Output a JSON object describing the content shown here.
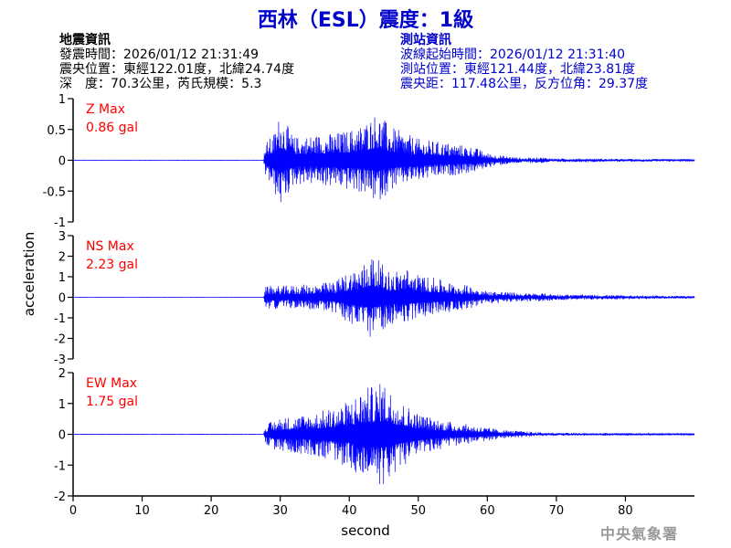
{
  "title": "西林（ESL）震度：1級",
  "event_info": {
    "heading": "地震資訊",
    "origin_time": "發震時間：2026/01/12 21:31:49",
    "epicenter": "震央位置：東經122.01度，北緯24.74度",
    "depth_magnitude": "深　度：70.3公里，芮氏規模：5.3"
  },
  "station_info": {
    "heading": "測站資訊",
    "wave_start": "波線起始時間：2026/01/12 21:31:40",
    "station_location": "測站位置：東經121.44度，北緯23.81度",
    "distance_azimuth": "震央距：117.48公里，反方位角：29.37度"
  },
  "footer": "中央氣象署",
  "colors": {
    "title": "#0000cc",
    "trace": "#0000ff",
    "max_label": "#ff0000",
    "axis": "#000000",
    "station_text": "#0000cc"
  },
  "chart_data": {
    "type": "line",
    "xlabel": "second",
    "ylabel": "acceleration",
    "xlim": [
      0,
      90
    ],
    "xticks": [
      0,
      10,
      20,
      30,
      40,
      50,
      60,
      70,
      80
    ],
    "grid": false,
    "panels": [
      {
        "name": "Z",
        "max_label": "Z Max",
        "max_value": "0.86 gal",
        "ylim": [
          -1,
          1
        ],
        "yticks": [
          -1,
          -0.5,
          0,
          0.5,
          1
        ],
        "envelope": {
          "time": [
            0,
            27.6,
            27.8,
            29,
            30,
            32,
            35,
            38,
            40,
            42,
            44,
            46,
            48,
            50,
            52,
            55,
            58,
            60,
            62,
            65,
            68,
            70,
            75,
            80,
            85,
            90
          ],
          "upper": [
            0.002,
            0.002,
            0.28,
            0.42,
            0.78,
            0.38,
            0.42,
            0.45,
            0.5,
            0.6,
            0.8,
            0.55,
            0.45,
            0.35,
            0.32,
            0.28,
            0.22,
            0.12,
            0.08,
            0.04,
            0.05,
            0.03,
            0.03,
            0.02,
            0.02,
            0.02
          ],
          "lower": [
            -0.002,
            -0.002,
            -0.25,
            -0.5,
            -0.78,
            -0.4,
            -0.4,
            -0.45,
            -0.5,
            -0.55,
            -0.7,
            -0.5,
            -0.4,
            -0.35,
            -0.3,
            -0.25,
            -0.2,
            -0.12,
            -0.08,
            -0.04,
            -0.05,
            -0.03,
            -0.03,
            -0.02,
            -0.02,
            -0.02
          ]
        }
      },
      {
        "name": "NS",
        "max_label": "NS Max",
        "max_value": "2.23 gal",
        "ylim": [
          -3,
          3
        ],
        "yticks": [
          -3,
          -2,
          -1,
          0,
          1,
          2,
          3
        ],
        "envelope": {
          "time": [
            0,
            27.6,
            27.8,
            29,
            30,
            32,
            35,
            38,
            40,
            42,
            43,
            44,
            46,
            48,
            50,
            53,
            55,
            58,
            60,
            62,
            65,
            68,
            70,
            75,
            80,
            85,
            90
          ],
          "upper": [
            0.005,
            0.005,
            0.5,
            0.6,
            0.55,
            0.6,
            0.65,
            0.8,
            1.3,
            1.6,
            2.2,
            1.9,
            1.2,
            1.5,
            1.1,
            0.9,
            0.7,
            0.55,
            0.3,
            0.3,
            0.2,
            0.2,
            0.15,
            0.12,
            0.1,
            0.08,
            0.06
          ],
          "lower": [
            -0.005,
            -0.005,
            -0.5,
            -0.6,
            -0.5,
            -0.55,
            -0.6,
            -0.8,
            -1.3,
            -1.8,
            -2.0,
            -1.8,
            -1.3,
            -1.3,
            -1.0,
            -0.8,
            -0.7,
            -0.5,
            -0.3,
            -0.3,
            -0.2,
            -0.2,
            -0.15,
            -0.12,
            -0.1,
            -0.08,
            -0.06
          ]
        }
      },
      {
        "name": "EW",
        "max_label": "EW Max",
        "max_value": "1.75 gal",
        "ylim": [
          -2,
          2
        ],
        "yticks": [
          -2,
          -1,
          0,
          1,
          2
        ],
        "envelope": {
          "time": [
            0,
            27.6,
            27.8,
            29,
            30,
            32,
            35,
            38,
            40,
            42,
            44,
            45,
            46,
            48,
            50,
            52,
            55,
            58,
            60,
            62,
            65,
            68,
            70,
            75,
            80,
            85,
            90
          ],
          "upper": [
            0.005,
            0.005,
            0.3,
            0.45,
            0.55,
            0.6,
            0.7,
            0.9,
            1.1,
            1.5,
            1.6,
            1.75,
            1.45,
            1.0,
            0.7,
            0.55,
            0.4,
            0.3,
            0.22,
            0.15,
            0.1,
            0.06,
            0.05,
            0.04,
            0.03,
            0.03,
            0.03
          ],
          "lower": [
            -0.005,
            -0.005,
            -0.3,
            -0.5,
            -0.6,
            -0.6,
            -0.7,
            -0.9,
            -1.1,
            -1.5,
            -1.6,
            -1.7,
            -1.5,
            -1.0,
            -0.75,
            -0.55,
            -0.4,
            -0.3,
            -0.22,
            -0.15,
            -0.1,
            -0.06,
            -0.05,
            -0.04,
            -0.03,
            -0.03,
            -0.03
          ]
        }
      }
    ]
  }
}
